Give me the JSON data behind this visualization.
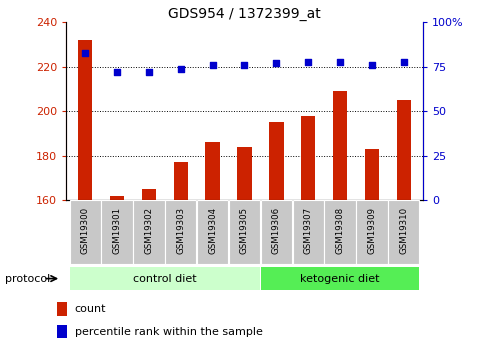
{
  "title": "GDS954 / 1372399_at",
  "samples": [
    "GSM19300",
    "GSM19301",
    "GSM19302",
    "GSM19303",
    "GSM19304",
    "GSM19305",
    "GSM19306",
    "GSM19307",
    "GSM19308",
    "GSM19309",
    "GSM19310"
  ],
  "count_values": [
    232,
    162,
    165,
    177,
    186,
    184,
    195,
    198,
    209,
    183,
    205
  ],
  "percentile_values": [
    83,
    72,
    72,
    74,
    76,
    76,
    77,
    78,
    78,
    76,
    78
  ],
  "groups": [
    {
      "label": "control diet",
      "start": 0,
      "end": 5,
      "color": "#ccffcc"
    },
    {
      "label": "ketogenic diet",
      "start": 6,
      "end": 10,
      "color": "#55ee55"
    }
  ],
  "protocol_label": "protocol",
  "bar_color": "#cc2200",
  "dot_color": "#0000cc",
  "left_ylim": [
    160,
    240
  ],
  "left_yticks": [
    160,
    180,
    200,
    220,
    240
  ],
  "right_ylim": [
    0,
    100
  ],
  "right_yticks": [
    0,
    25,
    50,
    75,
    100
  ],
  "right_yticklabels": [
    "0",
    "25",
    "50",
    "75",
    "100%"
  ],
  "grid_values": [
    180,
    200,
    220
  ],
  "legend_count_label": "count",
  "legend_percentile_label": "percentile rank within the sample",
  "gray_box_color": "#c8c8c8",
  "bar_width": 0.45
}
